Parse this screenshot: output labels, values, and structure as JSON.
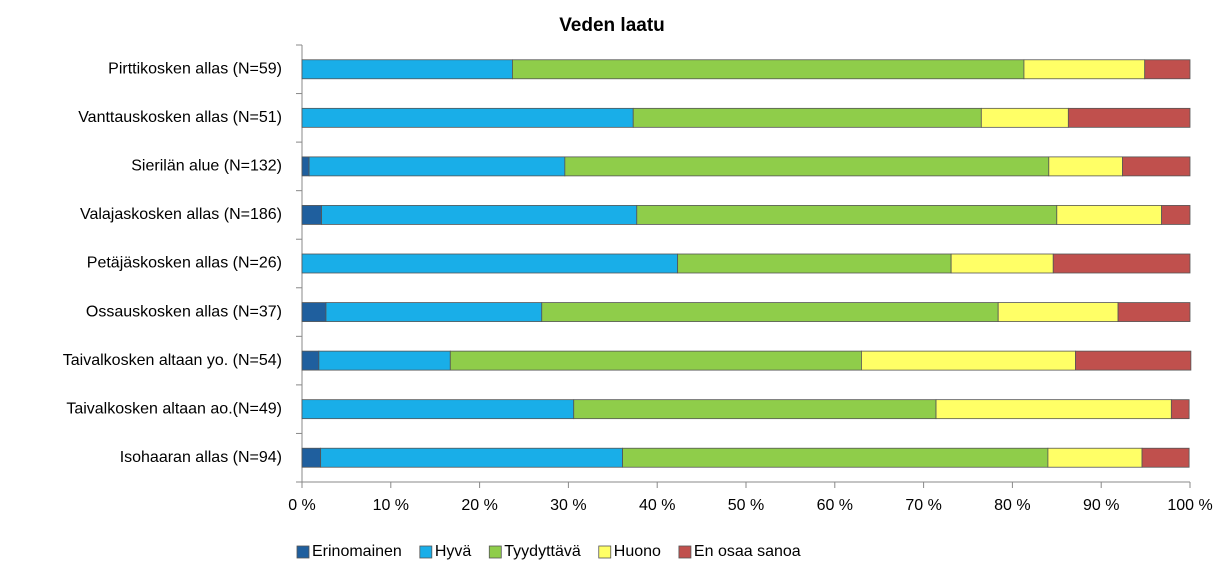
{
  "chart_data": {
    "type": "stacked_barh",
    "title": "Veden laatu",
    "categories": [
      "Pirttikosken allas (N=59)",
      "Vanttauskosken allas (N=51)",
      "Sierilän alue (N=132)",
      "Valajaskosken allas (N=186)",
      "Petäjäskosken allas (N=26)",
      "Ossauskosken allas (N=37)",
      "Taivalkosken altaan yo. (N=54)",
      "Taivalkosken altaan ao.(N=49)",
      "Isohaaran allas (N=94)"
    ],
    "series": [
      {
        "name": "Erinomainen",
        "color": "#1f5f9e",
        "values": [
          0,
          0,
          0.8,
          2.2,
          0,
          2.7,
          1.9,
          0,
          2.1
        ]
      },
      {
        "name": "Hyvä",
        "color": "#19aee8",
        "values": [
          23.7,
          37.3,
          28.8,
          35.5,
          42.3,
          24.3,
          14.8,
          30.6,
          34.0
        ]
      },
      {
        "name": "Tyydyttävä",
        "color": "#8fcd4a",
        "values": [
          57.6,
          39.2,
          54.5,
          47.3,
          30.8,
          51.4,
          46.3,
          40.8,
          47.9
        ]
      },
      {
        "name": "Huono",
        "color": "#ffff66",
        "values": [
          13.6,
          9.8,
          8.3,
          11.8,
          11.5,
          13.5,
          24.1,
          26.5,
          10.6
        ]
      },
      {
        "name": "En osaa sanoa",
        "color": "#c0504d",
        "values": [
          5.1,
          13.7,
          7.6,
          3.2,
          15.4,
          8.1,
          13.0,
          2.0,
          5.3
        ]
      }
    ],
    "xlim": [
      0,
      100
    ],
    "xticks": [
      {
        "value": 0,
        "label": "0 %"
      },
      {
        "value": 10,
        "label": "10 %"
      },
      {
        "value": 20,
        "label": "20 %"
      },
      {
        "value": 30,
        "label": "30 %"
      },
      {
        "value": 40,
        "label": "40 %"
      },
      {
        "value": 50,
        "label": "50 %"
      },
      {
        "value": 60,
        "label": "60 %"
      },
      {
        "value": 70,
        "label": "70 %"
      },
      {
        "value": 80,
        "label": "80 %"
      },
      {
        "value": 90,
        "label": "90 %"
      },
      {
        "value": 100,
        "label": "100 %"
      }
    ],
    "legend": "bottom"
  }
}
